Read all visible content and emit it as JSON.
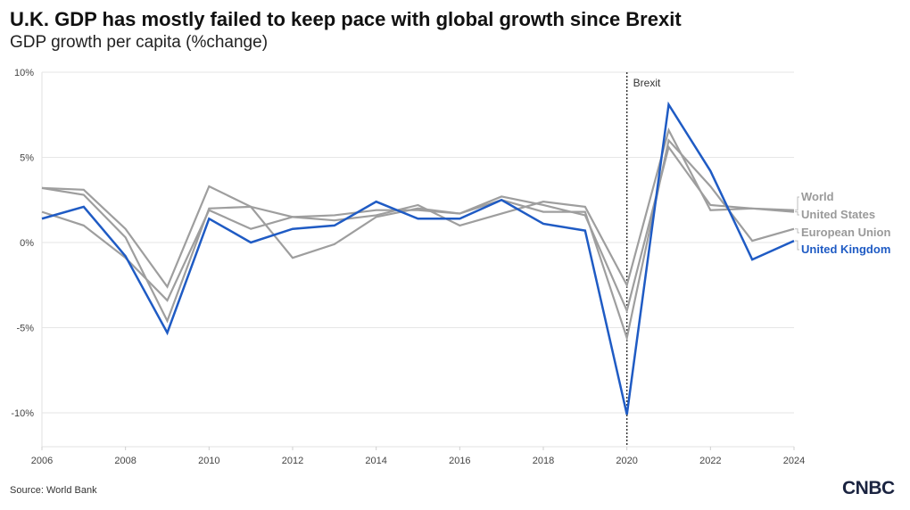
{
  "chart_data": {
    "type": "line",
    "title": "U.K. GDP has mostly failed to keep pace with global growth since Brexit",
    "subtitle": "GDP growth per capita (%change)",
    "x": [
      2006,
      2007,
      2008,
      2009,
      2010,
      2011,
      2012,
      2013,
      2014,
      2015,
      2016,
      2017,
      2018,
      2019,
      2020,
      2021,
      2022,
      2023,
      2024
    ],
    "xlim": [
      2006,
      2024
    ],
    "x_ticks": [
      "2006",
      "2008",
      "2010",
      "2012",
      "2014",
      "2016",
      "2018",
      "2020",
      "2022",
      "2024"
    ],
    "ylim": [
      -12,
      10
    ],
    "y_ticks": [
      {
        "value": 10,
        "label": "10%"
      },
      {
        "value": 5,
        "label": "5%"
      },
      {
        "value": 0,
        "label": "0%"
      },
      {
        "value": -5,
        "label": "-5%"
      },
      {
        "value": -10,
        "label": "-10%"
      }
    ],
    "grid": "horizontal",
    "series": [
      {
        "name": "World",
        "color": "#9e9e9e",
        "values": [
          3.2,
          3.1,
          0.8,
          -2.6,
          3.3,
          2.1,
          1.5,
          1.6,
          1.9,
          1.9,
          1.7,
          2.7,
          2.2,
          1.6,
          -4.0,
          5.6,
          2.2,
          2.0,
          1.9
        ]
      },
      {
        "name": "United States",
        "color": "#9e9e9e",
        "values": [
          1.8,
          1.0,
          -0.9,
          -3.4,
          1.9,
          0.8,
          1.5,
          1.3,
          1.6,
          2.2,
          1.0,
          1.7,
          2.4,
          2.1,
          -2.5,
          6.6,
          1.9,
          2.0,
          1.8
        ]
      },
      {
        "name": "European Union",
        "color": "#9e9e9e",
        "values": [
          3.2,
          2.8,
          0.3,
          -4.6,
          2.0,
          2.1,
          -0.9,
          -0.1,
          1.5,
          2.0,
          1.7,
          2.5,
          1.8,
          1.8,
          -5.6,
          6.0,
          3.3,
          0.1,
          0.8
        ]
      },
      {
        "name": "United Kingdom",
        "color": "#1f5bc4",
        "values": [
          1.4,
          2.1,
          -0.8,
          -5.3,
          1.4,
          0.0,
          0.8,
          1.0,
          2.4,
          1.4,
          1.4,
          2.5,
          1.1,
          0.7,
          -10.1,
          8.1,
          4.2,
          -1.0,
          0.1
        ]
      }
    ],
    "annotations": [
      {
        "x": 2020,
        "label": "Brexit",
        "style": "dotted vertical line"
      }
    ],
    "source": "Source: World Bank",
    "logo": "CNBC"
  }
}
